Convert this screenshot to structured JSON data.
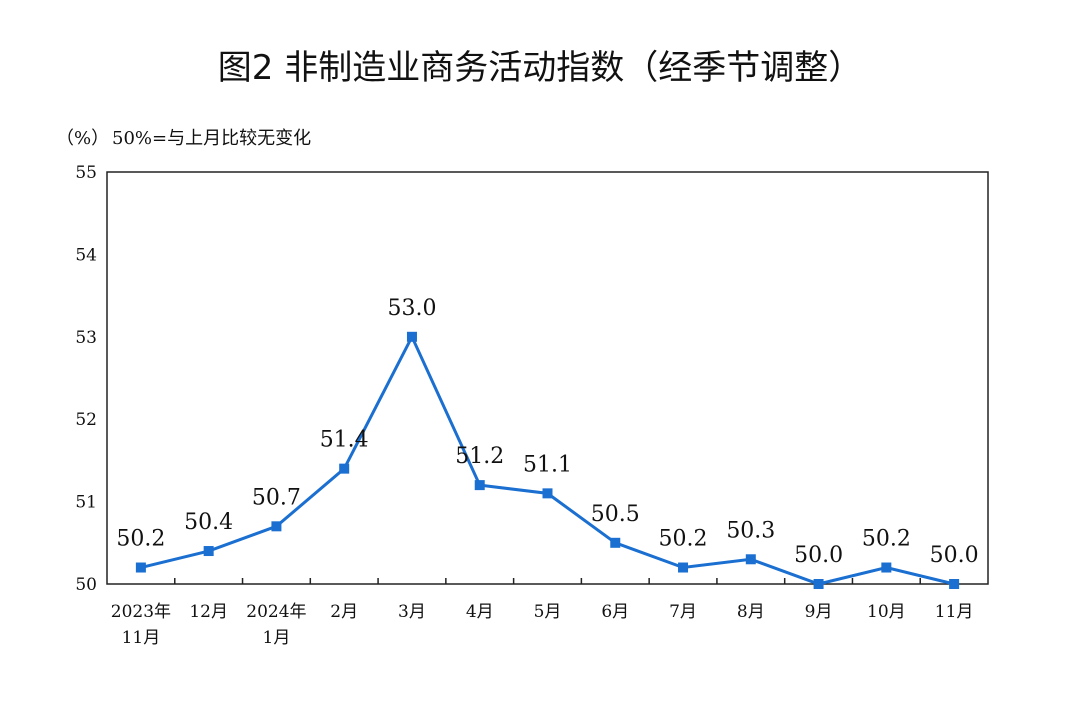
{
  "chart_data": {
    "type": "line",
    "title": "图2  非制造业商务活动指数（经季节调整）",
    "ylabel": "（%）",
    "annotation": "50%=与上月比较无变化",
    "categories": [
      [
        "2023年",
        "11月"
      ],
      [
        "12月"
      ],
      [
        "2024年",
        "1月"
      ],
      [
        "2月"
      ],
      [
        "3月"
      ],
      [
        "4月"
      ],
      [
        "5月"
      ],
      [
        "6月"
      ],
      [
        "7月"
      ],
      [
        "8月"
      ],
      [
        "9月"
      ],
      [
        "10月"
      ],
      [
        "11月"
      ]
    ],
    "series": [
      {
        "name": "非制造业商务活动指数",
        "values": [
          50.2,
          50.4,
          50.7,
          51.4,
          53.0,
          51.2,
          51.1,
          50.5,
          50.2,
          50.3,
          50.0,
          50.2,
          50.0
        ],
        "color": "#1a6fd1"
      }
    ],
    "data_labels": [
      "50.2",
      "50.4",
      "50.7",
      "51.4",
      "53.0",
      "51.2",
      "51.1",
      "50.5",
      "50.2",
      "50.3",
      "50.0",
      "50.2",
      "50.0"
    ],
    "yticks": [
      "50",
      "51",
      "52",
      "53",
      "54",
      "55"
    ],
    "ylim": [
      50,
      55
    ],
    "grid": false
  }
}
